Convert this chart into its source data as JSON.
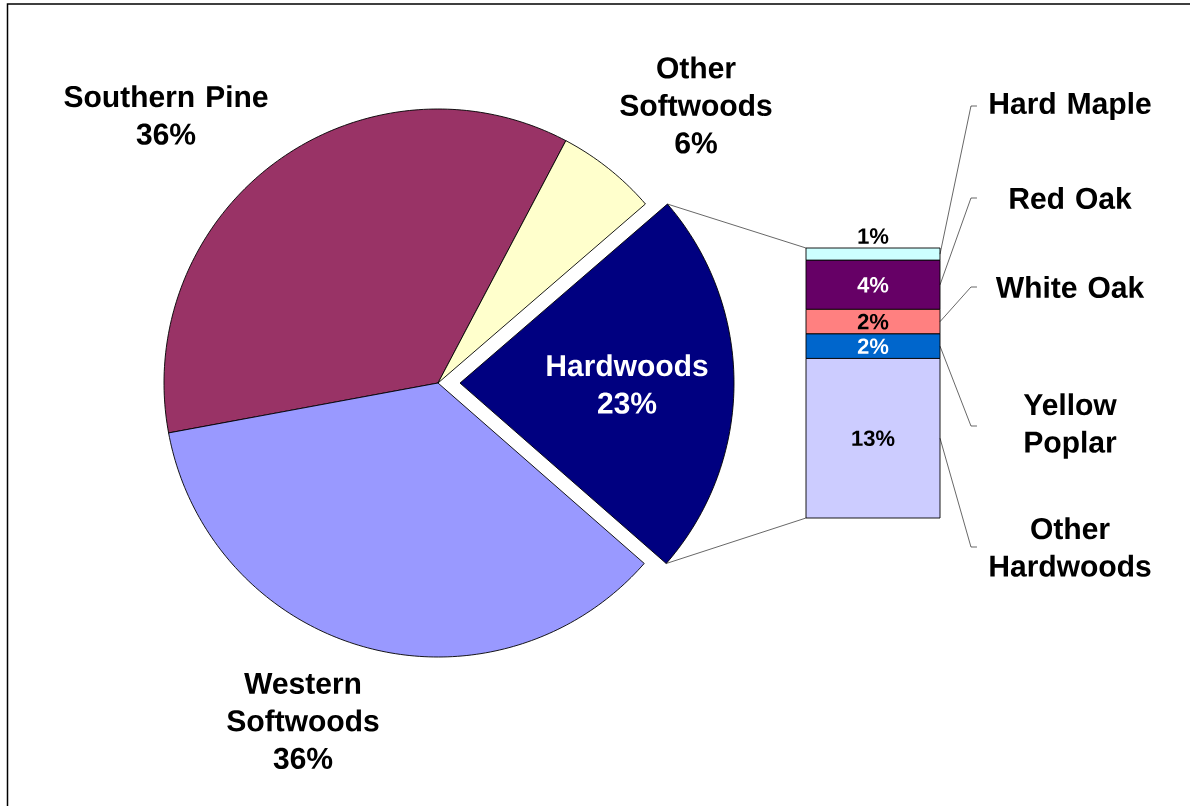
{
  "chart_data": [
    {
      "type": "pie",
      "categories": [
        "Southern Pine",
        "Other Softwoods",
        "Hardwoods",
        "Western Softwoods"
      ],
      "values": [
        36,
        6,
        23,
        36
      ],
      "colors": [
        "#993366",
        "#ffffcc",
        "#000080",
        "#9999ff"
      ],
      "value_labels": [
        "36%",
        "6%",
        "23%",
        "36%"
      ]
    },
    {
      "type": "bar",
      "stacked": true,
      "categories": [
        null
      ],
      "series": [
        {
          "name": "Other Hardwoods",
          "color": "#ccccff",
          "values": [
            13
          ],
          "value_labels": [
            "13%"
          ]
        },
        {
          "name": "Yellow Poplar",
          "color": "#0066cc",
          "values": [
            2
          ],
          "value_labels": [
            "2%"
          ]
        },
        {
          "name": "White Oak",
          "color": "#ff8080",
          "values": [
            2
          ],
          "value_labels": [
            "2%"
          ]
        },
        {
          "name": "Red Oak",
          "color": "#660066",
          "values": [
            4
          ],
          "value_labels": [
            "4%"
          ]
        },
        {
          "name": "Hard Maple",
          "color": "#ccffff",
          "values": [
            1
          ],
          "value_labels": [
            "1%"
          ]
        }
      ]
    }
  ]
}
